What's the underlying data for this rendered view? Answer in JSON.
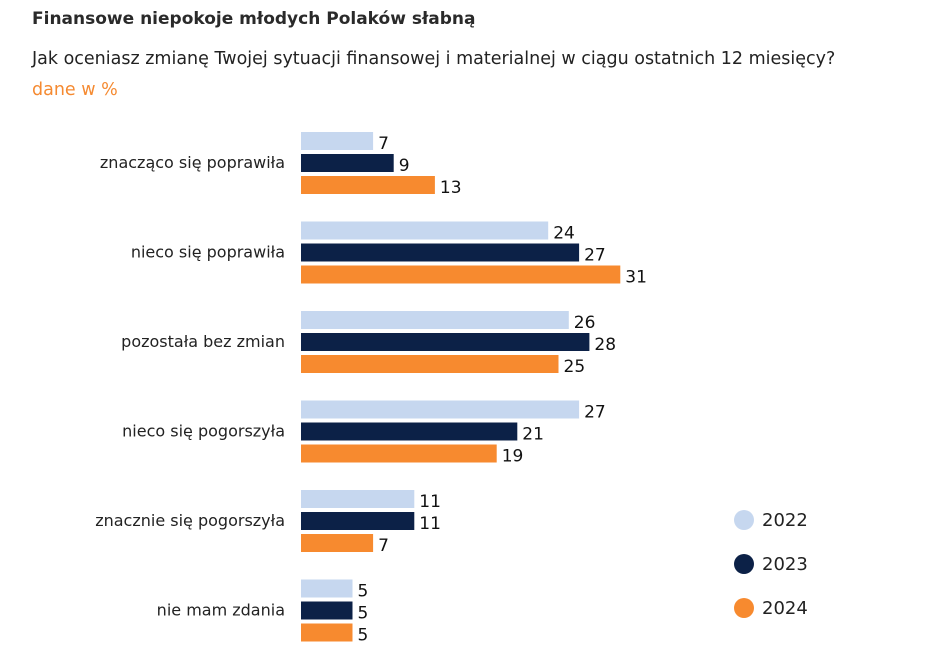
{
  "title": "Finansowe niepokoje młodych Polaków słabną",
  "subtitle": "Jak oceniasz zmianę Twojej sytuacji finansowej i materialnej w ciągu ostatnich 12 miesięcy?",
  "unit_note": "dane w %",
  "chart_data": {
    "type": "bar",
    "orientation": "horizontal",
    "title": "Finansowe niepokoje młodych Polaków słabną",
    "subtitle": "Jak oceniasz zmianę Twojej sytuacji finansowej i materialnej w ciągu ostatnich 12 miesięcy?",
    "unit": "dane w %",
    "categories": [
      "znacząco się poprawiła",
      "nieco się poprawiła",
      "pozostała bez zmian",
      "nieco się pogorszyła",
      "znacznie się pogorszyła",
      "nie mam zdania"
    ],
    "series": [
      {
        "name": "2022",
        "color": "#c6d7ef",
        "values": [
          7,
          24,
          26,
          27,
          11,
          5
        ]
      },
      {
        "name": "2023",
        "color": "#0c2147",
        "values": [
          9,
          27,
          28,
          21,
          11,
          5
        ]
      },
      {
        "name": "2024",
        "color": "#f78a2f",
        "values": [
          13,
          31,
          25,
          19,
          7,
          5
        ]
      }
    ],
    "xlim": [
      0,
      31
    ],
    "grid": false,
    "legend_position": "bottom-right"
  }
}
